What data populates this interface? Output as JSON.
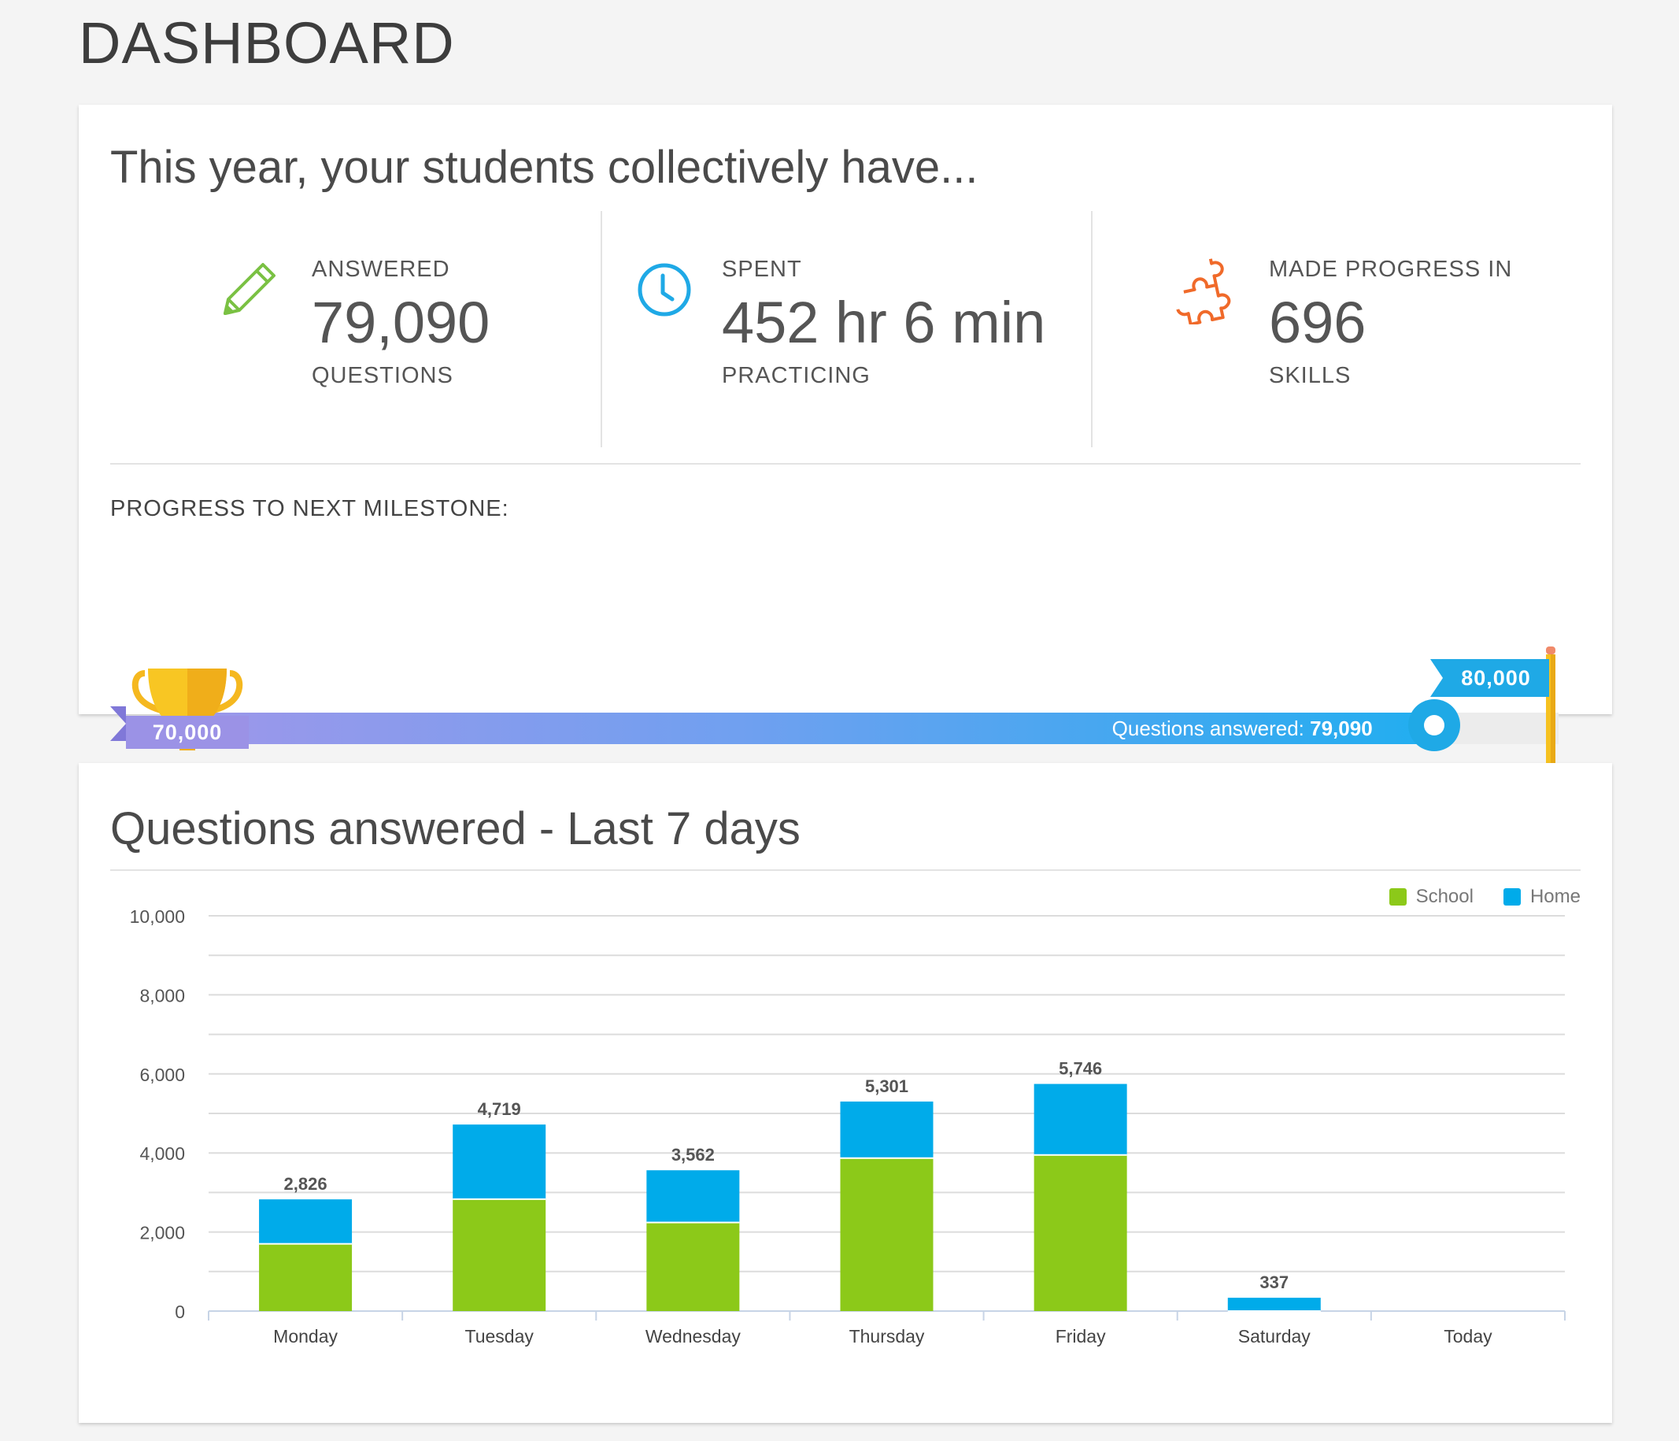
{
  "page": {
    "title": "DASHBOARD"
  },
  "summary": {
    "heading": "This year, your students collectively have...",
    "stats": [
      {
        "icon": "pencil-icon",
        "label": "ANSWERED",
        "value": "79,090",
        "unit": "QUESTIONS",
        "color": "#7ac143"
      },
      {
        "icon": "clock-icon",
        "label": "SPENT",
        "value": "452 hr 6 min",
        "unit": "PRACTICING",
        "color": "#1fa9e6"
      },
      {
        "icon": "puzzle-icon",
        "label": "MADE PROGRESS IN",
        "value": "696",
        "unit": "SKILLS",
        "color": "#f06a2a"
      }
    ],
    "milestone": {
      "label": "PROGRESS TO NEXT MILESTONE:",
      "start": "70,000",
      "end": "80,000",
      "readout_label": "Questions answered:",
      "readout_value": "79,090",
      "start_value": 70000,
      "end_value": 80000,
      "current_value": 79090
    }
  },
  "chart_section": {
    "heading": "Questions answered - Last 7 days"
  },
  "colors": {
    "school": "#8cc919",
    "home": "#00abea",
    "accent": "#1fa9e6"
  },
  "chart_data": {
    "type": "bar",
    "stacked": true,
    "categories": [
      "Monday",
      "Tuesday",
      "Wednesday",
      "Thursday",
      "Friday",
      "Saturday",
      "Today"
    ],
    "series": [
      {
        "name": "School",
        "values": [
          1700,
          2830,
          2240,
          3870,
          3950,
          0,
          0
        ]
      },
      {
        "name": "Home",
        "values": [
          1126,
          1889,
          1322,
          1431,
          1796,
          337,
          0
        ]
      }
    ],
    "totals": [
      "2,826",
      "4,719",
      "3,562",
      "5,301",
      "5,746",
      "337",
      ""
    ],
    "yticks": [
      "0",
      "2,000",
      "4,000",
      "6,000",
      "8,000",
      "10,000"
    ],
    "ylim": [
      0,
      10000
    ],
    "legend_position": "top-right",
    "grid": true
  }
}
